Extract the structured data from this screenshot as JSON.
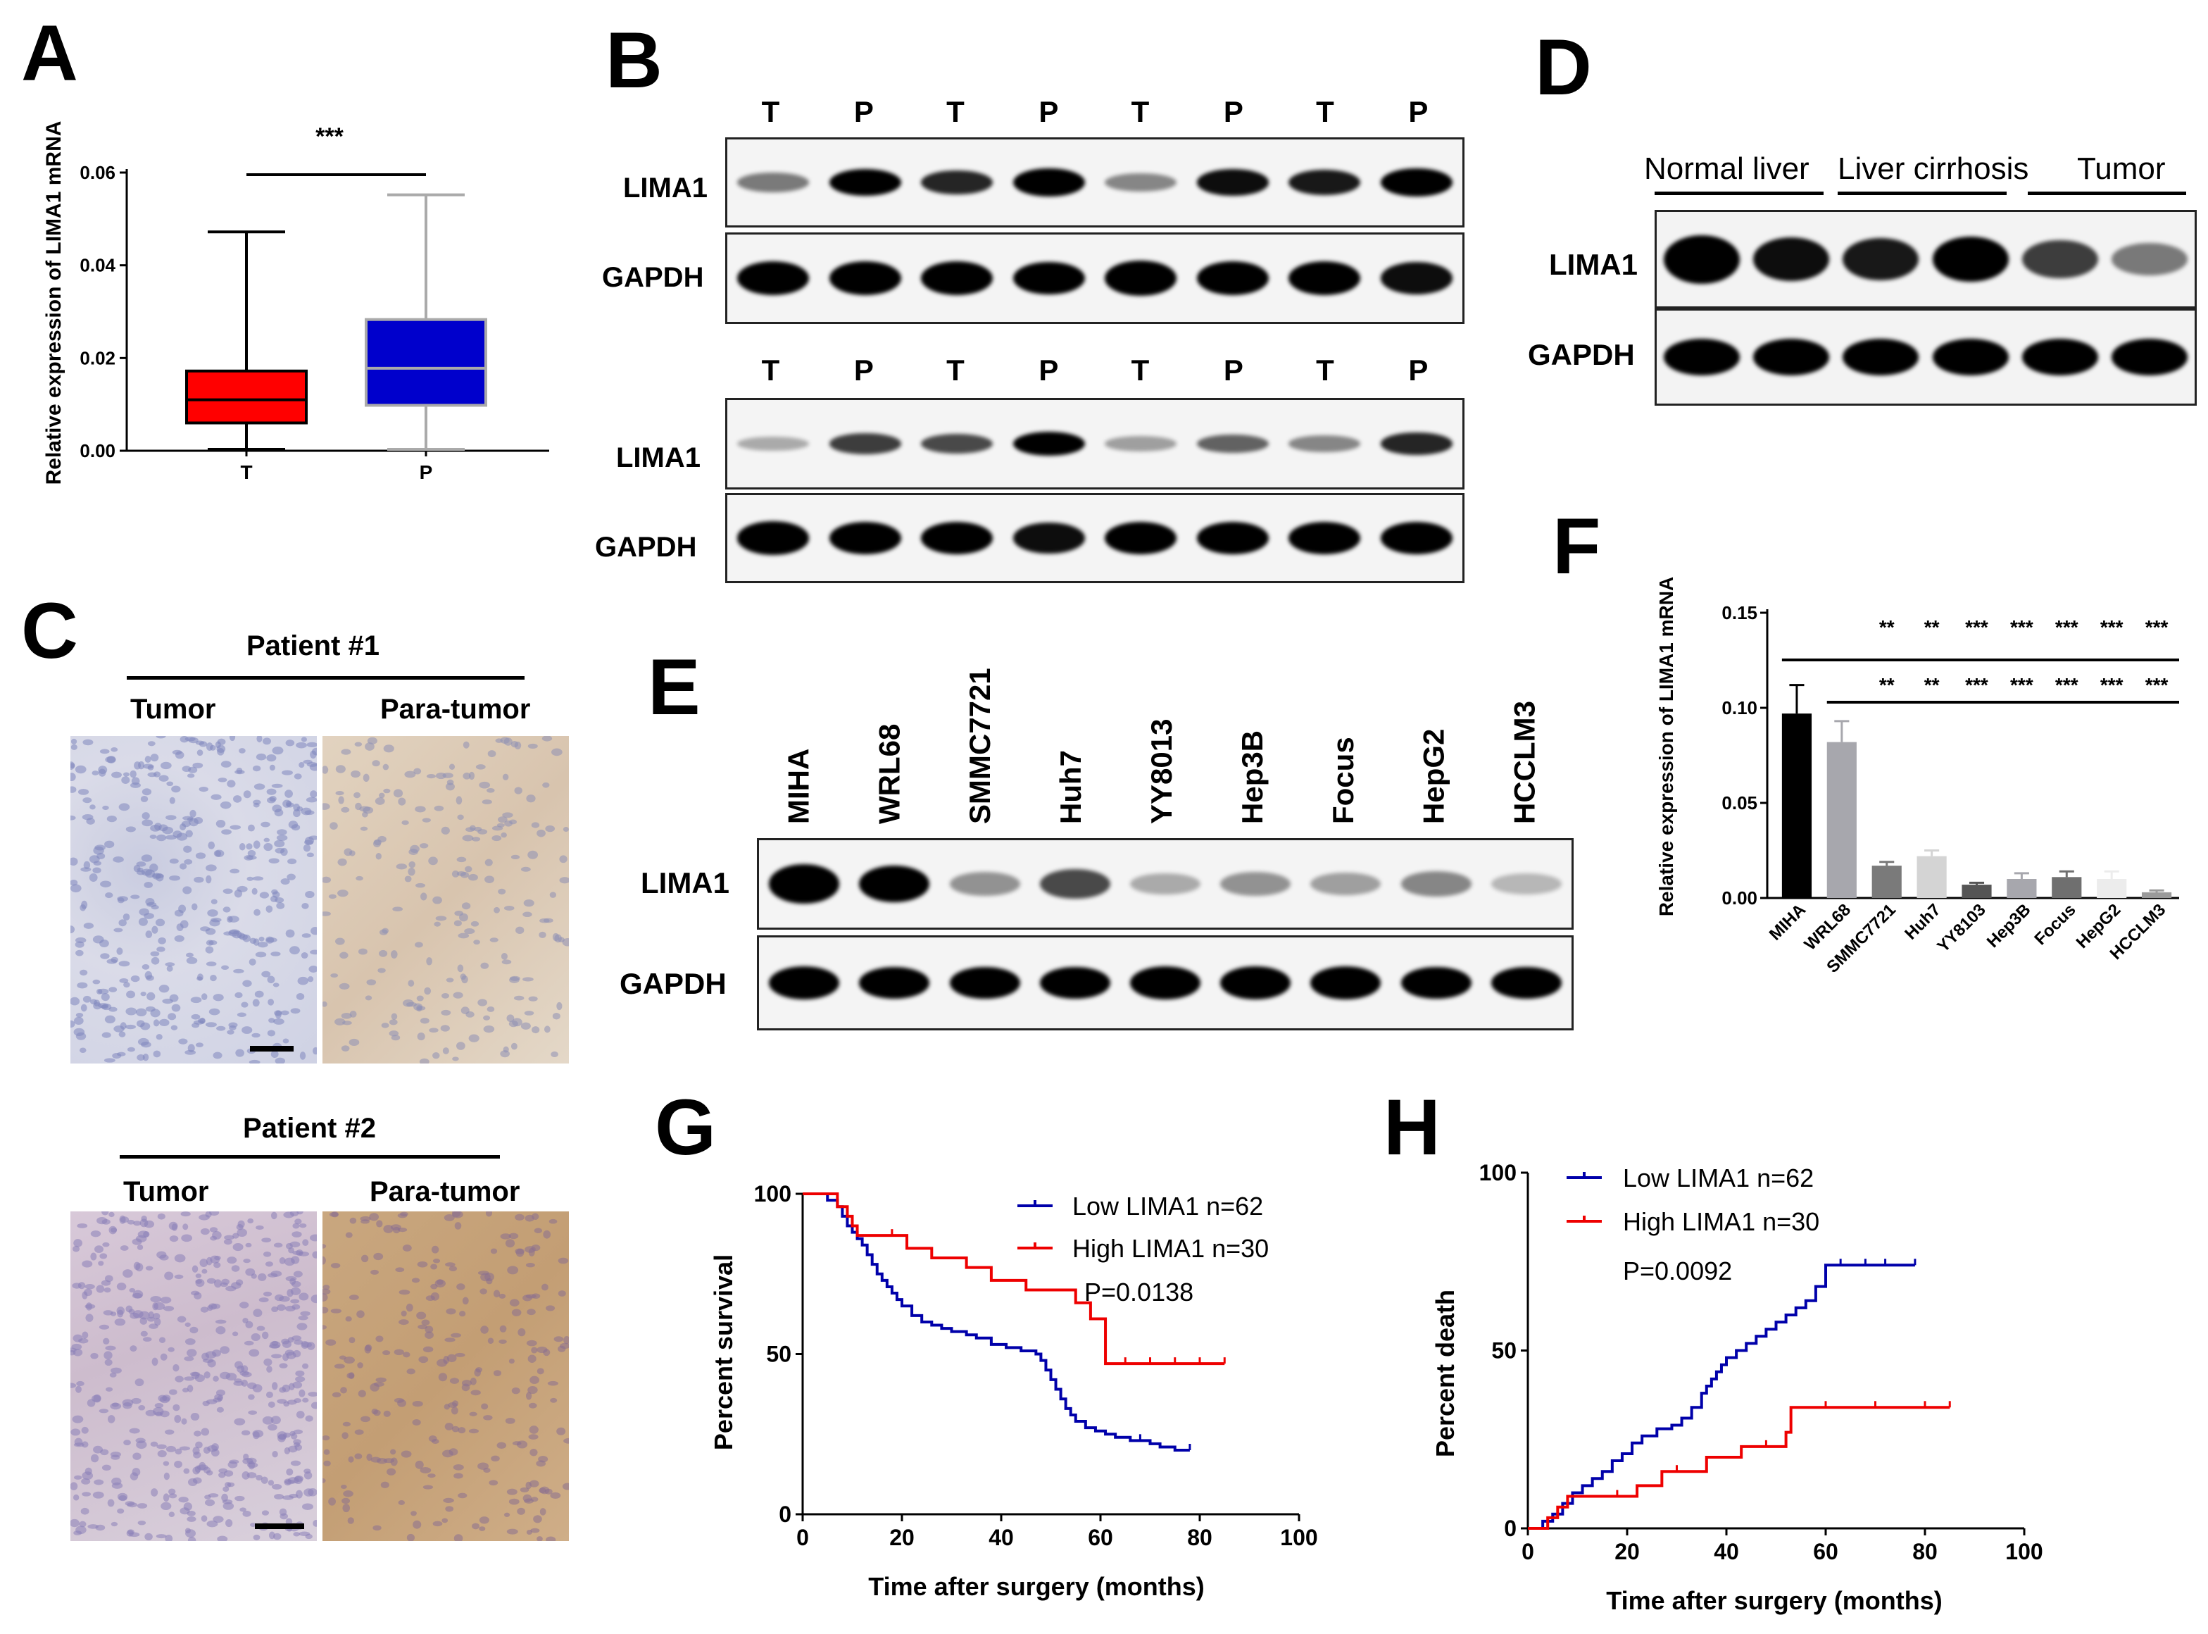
{
  "panel_labels": {
    "a": "A",
    "b": "B",
    "c": "C",
    "d": "D",
    "e": "E",
    "f": "F",
    "g": "G",
    "h": "H"
  },
  "panel_a": {
    "ylabel": "Relative expression of LIMA1 mRNA",
    "significance": "***",
    "yticks": [
      "0.00",
      "0.02",
      "0.04",
      "0.06"
    ],
    "chart_data": {
      "type": "box",
      "categories": [
        "T",
        "P"
      ],
      "ylim": [
        0,
        0.06
      ],
      "boxes": [
        {
          "category": "T",
          "min": 0.0003,
          "q1": 0.006,
          "median": 0.011,
          "q3": 0.0172,
          "max": 0.0472,
          "color": "#ff0000"
        },
        {
          "category": "P",
          "min": 0.0003,
          "q1": 0.0098,
          "median": 0.0178,
          "q3": 0.0283,
          "max": 0.0552,
          "color": "#0000cc"
        }
      ]
    }
  },
  "panel_b": {
    "lane_labels": [
      "T",
      "P",
      "T",
      "P",
      "T",
      "P",
      "T",
      "P"
    ],
    "lane_labels_2": [
      "T",
      "P",
      "T",
      "P",
      "T",
      "P",
      "T",
      "P"
    ],
    "row_labels": {
      "lima1_1": "LIMA1",
      "gapdh_1": "GAPDH",
      "lima1_2": "LIMA1",
      "gapdh_2": "GAPDH"
    },
    "lima1_intensity_1": [
      0.35,
      0.85,
      0.7,
      0.95,
      0.3,
      0.8,
      0.75,
      0.95
    ],
    "gapdh_intensity_1": [
      0.9,
      0.9,
      0.9,
      0.85,
      0.95,
      0.9,
      0.9,
      0.8
    ],
    "lima1_intensity_2": [
      0.15,
      0.6,
      0.55,
      0.85,
      0.2,
      0.45,
      0.3,
      0.7
    ],
    "gapdh_intensity_2": [
      0.95,
      0.9,
      0.9,
      0.8,
      0.9,
      0.9,
      0.9,
      0.9
    ]
  },
  "panel_c": {
    "patient1": "Patient #1",
    "patient2": "Patient #2",
    "tumor": "Tumor",
    "para_tumor": "Para-tumor",
    "colors": {
      "tumor_stain": "#b8bcd8",
      "para_light": "#d9c6ae",
      "para_dark": "#c9a77e",
      "tumor2": "#cbb6c9"
    }
  },
  "panel_d": {
    "groups": [
      "Normal liver",
      "Liver cirrhosis",
      "Tumor"
    ],
    "row_labels": {
      "lima1": "LIMA1",
      "gapdh": "GAPDH"
    },
    "lima1_intensity": [
      1.0,
      0.8,
      0.75,
      0.85,
      0.6,
      0.35
    ],
    "gapdh_intensity": [
      0.95,
      0.95,
      0.95,
      0.95,
      0.95,
      0.95
    ]
  },
  "panel_e": {
    "lanes": [
      "MIHA",
      "WRL68",
      "SMMC7721",
      "Huh7",
      "YY8013",
      "Hep3B",
      "Focus",
      "HepG2",
      "HCCLM3"
    ],
    "row_labels": {
      "lima1": "LIMA1",
      "gapdh": "GAPDH"
    },
    "lima1_intensity": [
      1.0,
      0.9,
      0.25,
      0.55,
      0.15,
      0.25,
      0.2,
      0.3,
      0.1
    ],
    "gapdh_intensity": [
      0.95,
      0.85,
      0.9,
      0.9,
      0.95,
      0.95,
      0.95,
      0.9,
      0.85
    ]
  },
  "panel_f": {
    "ylabel": "Relative expression of LIMA1 mRNA",
    "yticks": [
      "0.00",
      "0.05",
      "0.10",
      "0.15"
    ],
    "sig_row1": [
      "**",
      "**",
      "***",
      "***",
      "***",
      "***",
      "***"
    ],
    "sig_row2": [
      "**",
      "**",
      "***",
      "***",
      "***",
      "***",
      "***"
    ],
    "chart_data": {
      "type": "bar",
      "categories": [
        "MIHA",
        "WRL68",
        "SMMC7721",
        "Huh7",
        "YY8103",
        "Hep3B",
        "Focus",
        "HepG2",
        "HCCLM3"
      ],
      "values": [
        0.097,
        0.082,
        0.017,
        0.022,
        0.007,
        0.01,
        0.011,
        0.01,
        0.003
      ],
      "errors": [
        0.015,
        0.011,
        0.002,
        0.003,
        0.001,
        0.003,
        0.003,
        0.004,
        0.001
      ],
      "colors": [
        "#000000",
        "#a7a7ad",
        "#7a7a7a",
        "#d4d4d4",
        "#555555",
        "#a7a7ad",
        "#6f6f6f",
        "#ececec",
        "#9a9a9a"
      ],
      "ylim": [
        0,
        0.15
      ]
    }
  },
  "panel_g": {
    "ylabel": "Percent survival",
    "xlabel": "Time after surgery (months)",
    "legend": {
      "low": "Low LIMA1 n=62",
      "high": "High LIMA1 n=30"
    },
    "pvalue": "P=0.0138",
    "xticks": [
      "0",
      "20",
      "40",
      "60",
      "80",
      "100"
    ],
    "yticks": [
      "0",
      "50",
      "100"
    ],
    "chart_data": {
      "type": "line",
      "xlim": [
        0,
        100
      ],
      "ylim": [
        0,
        100
      ],
      "series": [
        {
          "name": "Low LIMA1 n=62",
          "color": "#0000aa",
          "x": [
            0,
            5,
            7,
            8,
            9,
            10,
            11,
            12,
            13,
            14,
            15,
            16,
            17,
            18,
            19,
            20,
            22,
            24,
            26,
            28,
            30,
            33,
            35,
            38,
            41,
            44,
            47,
            48,
            49,
            50,
            51,
            52,
            53,
            54,
            55,
            57,
            59,
            61,
            63,
            66,
            68,
            70,
            72,
            75,
            78
          ],
          "y": [
            100,
            98,
            96,
            93,
            90,
            88,
            86,
            84,
            81,
            78,
            75,
            73,
            71,
            69,
            67,
            65,
            62,
            60,
            59,
            58,
            57,
            56,
            55,
            53,
            52,
            51,
            50,
            48,
            45,
            42,
            39,
            36,
            33,
            31,
            29,
            27,
            26,
            25,
            24,
            23,
            23,
            22,
            21,
            20,
            20
          ]
        },
        {
          "name": "High LIMA1 n=30",
          "color": "#ee0000",
          "x": [
            0,
            7,
            9,
            10,
            11,
            18,
            21,
            26,
            33,
            38,
            45,
            55,
            58,
            61,
            65,
            70,
            75,
            80,
            85
          ],
          "y": [
            100,
            96,
            93,
            90,
            87,
            87,
            83,
            80,
            77,
            73,
            70,
            66,
            61,
            47,
            47,
            47,
            47,
            47,
            47
          ]
        }
      ]
    }
  },
  "panel_h": {
    "ylabel": "Percent death",
    "xlabel": "Time after surgery (months)",
    "legend": {
      "low": "Low LIMA1 n=62",
      "high": "High LIMA1 n=30"
    },
    "pvalue": "P=0.0092",
    "xticks": [
      "0",
      "20",
      "40",
      "60",
      "80",
      "100"
    ],
    "yticks": [
      "0",
      "50",
      "100"
    ],
    "chart_data": {
      "type": "line",
      "xlim": [
        0,
        100
      ],
      "ylim": [
        0,
        100
      ],
      "series": [
        {
          "name": "Low LIMA1 n=62",
          "color": "#0000aa",
          "x": [
            0,
            3,
            5,
            7,
            9,
            11,
            13,
            15,
            17,
            19,
            21,
            23,
            26,
            29,
            31,
            33,
            35,
            36,
            37,
            38,
            39,
            40,
            42,
            44,
            46,
            48,
            50,
            52,
            54,
            56,
            58,
            60,
            63,
            68,
            72,
            78
          ],
          "y": [
            0,
            2,
            4,
            7,
            10,
            12,
            14,
            16,
            19,
            21,
            24,
            26,
            28,
            29,
            31,
            34,
            38,
            40,
            42,
            44,
            46,
            48,
            50,
            52,
            54,
            56,
            58,
            60,
            62,
            64,
            68,
            74,
            74,
            74,
            74,
            74
          ]
        },
        {
          "name": "High LIMA1 n=30",
          "color": "#ee0000",
          "x": [
            0,
            4,
            6,
            8,
            18,
            22,
            27,
            30,
            36,
            43,
            48,
            52,
            53,
            60,
            70,
            80,
            85
          ],
          "y": [
            0,
            3,
            6,
            9,
            9,
            12,
            16,
            16,
            20,
            23,
            23,
            27,
            34,
            34,
            34,
            34,
            34
          ]
        }
      ]
    }
  }
}
